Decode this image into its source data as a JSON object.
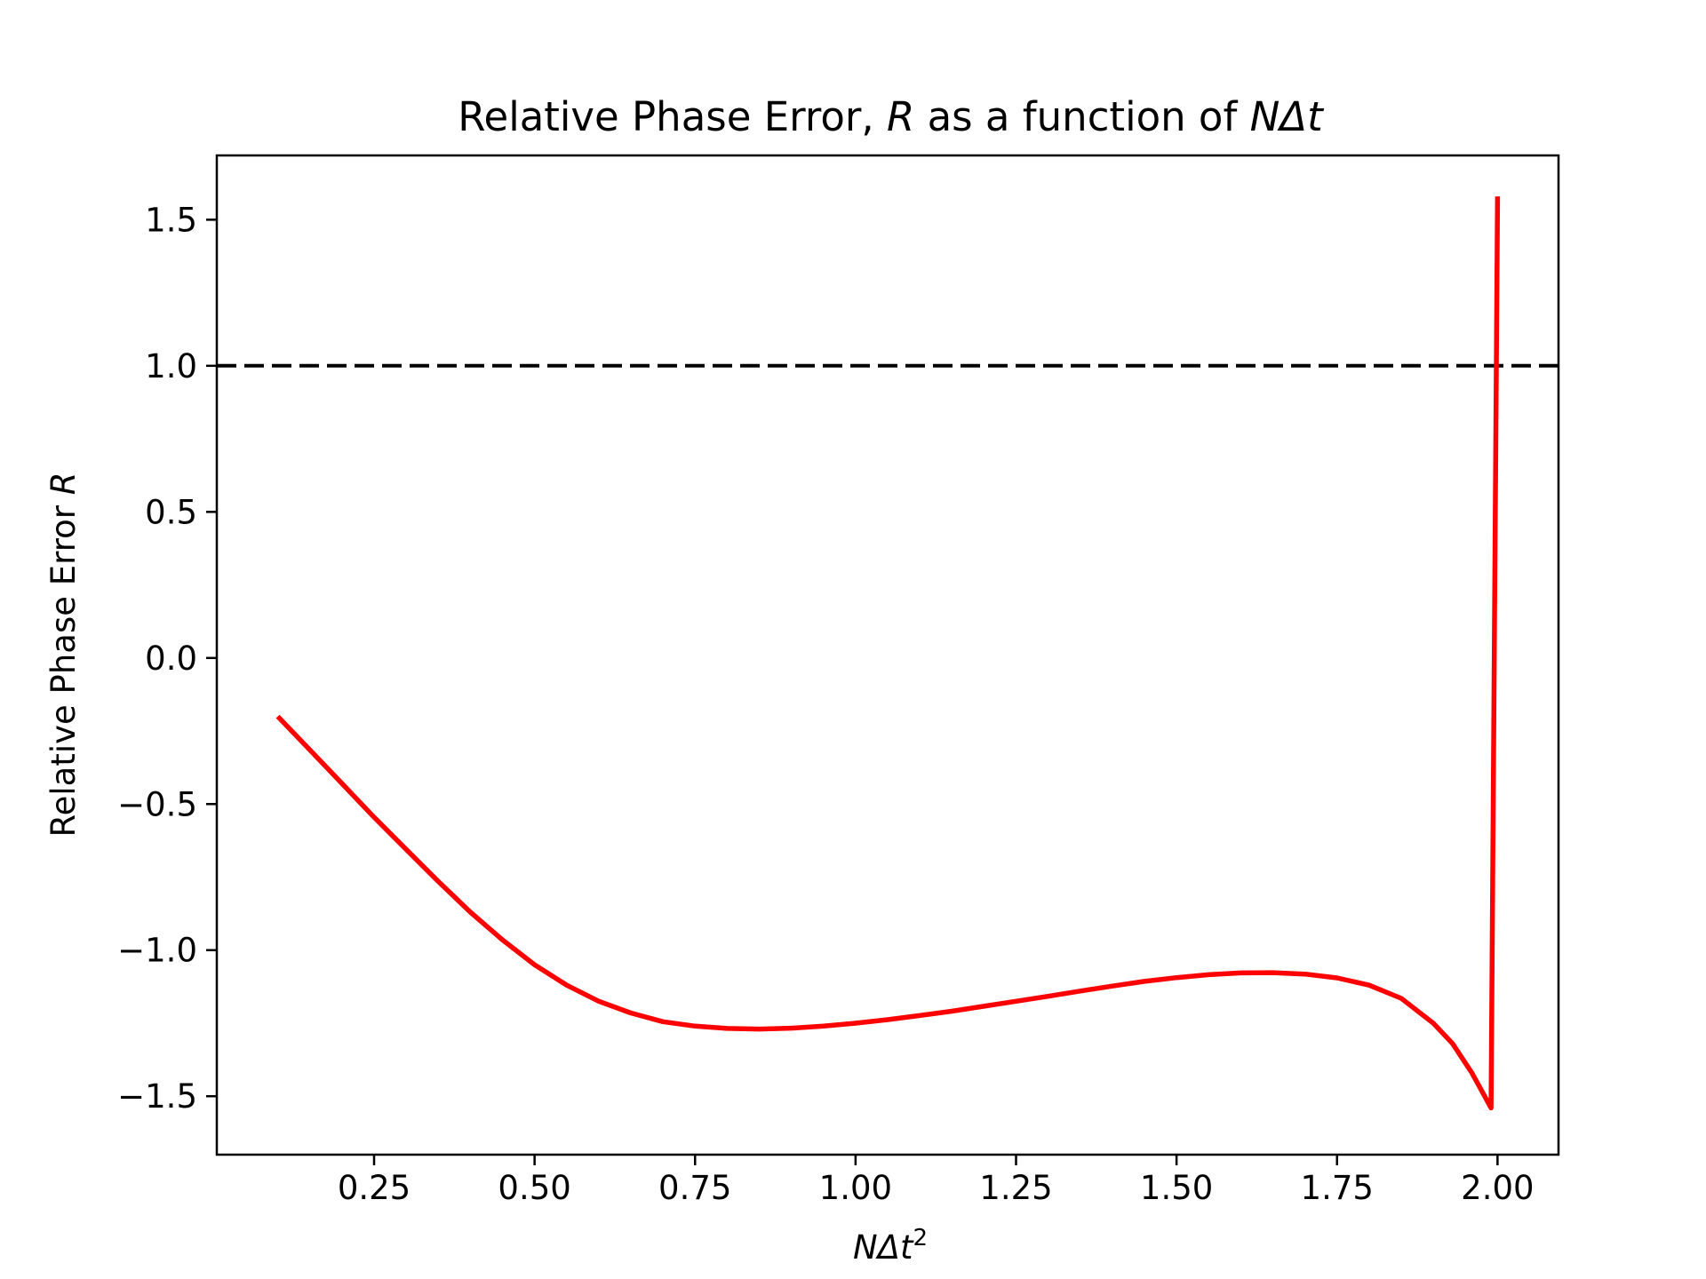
{
  "chart_data": {
    "type": "line",
    "title": {
      "prefix": "Relative Phase Error, ",
      "var": "R",
      "middle": " as a function of ",
      "var2": "NΔt"
    },
    "xlabel": {
      "var": "NΔt",
      "sup": "2"
    },
    "ylabel": {
      "prefix": "Relative Phase Error ",
      "var": "R"
    },
    "xlim": [
      0.005,
      2.095
    ],
    "ylim": [
      -1.7,
      1.72
    ],
    "x_ticks": [
      0.25,
      0.5,
      0.75,
      1.0,
      1.25,
      1.5,
      1.75,
      2.0
    ],
    "x_tick_labels": [
      "0.25",
      "0.50",
      "0.75",
      "1.00",
      "1.25",
      "1.50",
      "1.75",
      "2.00"
    ],
    "y_ticks": [
      -1.5,
      -1.0,
      -0.5,
      0.0,
      0.5,
      1.0,
      1.5
    ],
    "y_tick_labels": [
      "−1.5",
      "−1.0",
      "−0.5",
      "0.0",
      "0.5",
      "1.0",
      "1.5"
    ],
    "grid": false,
    "series": [
      {
        "color": "#ff0000",
        "style": "solid",
        "x": [
          0.1,
          0.15,
          0.2,
          0.25,
          0.3,
          0.35,
          0.4,
          0.45,
          0.5,
          0.55,
          0.6,
          0.65,
          0.7,
          0.75,
          0.8,
          0.85,
          0.9,
          0.95,
          1.0,
          1.05,
          1.1,
          1.15,
          1.2,
          1.25,
          1.3,
          1.35,
          1.4,
          1.45,
          1.5,
          1.55,
          1.6,
          1.65,
          1.7,
          1.75,
          1.8,
          1.85,
          1.9,
          1.93,
          1.96,
          1.98,
          1.99,
          2.0
        ],
        "y": [
          -0.2,
          -0.315,
          -0.43,
          -0.545,
          -0.655,
          -0.765,
          -0.87,
          -0.965,
          -1.05,
          -1.12,
          -1.175,
          -1.215,
          -1.245,
          -1.26,
          -1.268,
          -1.27,
          -1.267,
          -1.26,
          -1.25,
          -1.238,
          -1.224,
          -1.209,
          -1.192,
          -1.175,
          -1.158,
          -1.14,
          -1.123,
          -1.107,
          -1.094,
          -1.084,
          -1.078,
          -1.077,
          -1.082,
          -1.095,
          -1.12,
          -1.165,
          -1.25,
          -1.32,
          -1.42,
          -1.5,
          -1.54,
          1.58
        ]
      },
      {
        "color": "#000000",
        "style": "dashed",
        "x": [
          0.005,
          2.095
        ],
        "y": [
          1.0,
          1.0
        ]
      }
    ]
  }
}
